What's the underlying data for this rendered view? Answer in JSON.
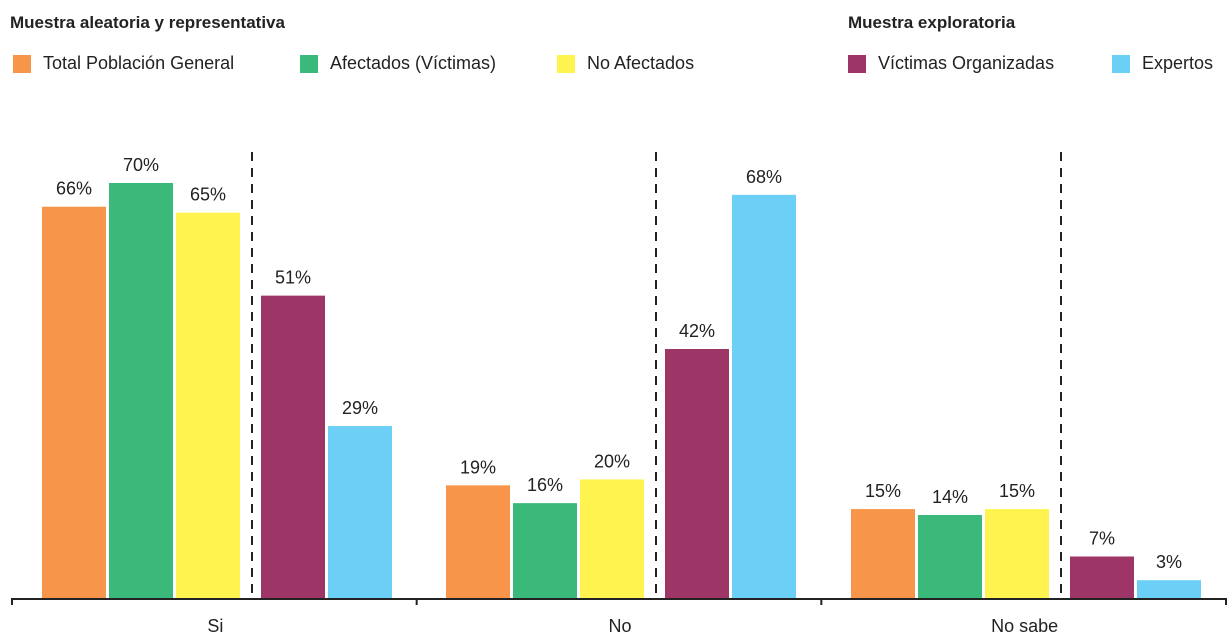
{
  "legend": {
    "group_random": {
      "title": "Muestra aleatoria y representativa",
      "items": [
        {
          "label": "Total Población General",
          "color": "#f7964a"
        },
        {
          "label": "Afectados (Víctimas)",
          "color": "#3bb97a"
        },
        {
          "label": "No Afectados",
          "color": "#fff34f"
        }
      ]
    },
    "group_exploratory": {
      "title": "Muestra exploratoria",
      "items": [
        {
          "label": "Víctimas Organizadas",
          "color": "#9e3567"
        },
        {
          "label": "Expertos",
          "color": "#6bcff6"
        }
      ]
    }
  },
  "chart_data": {
    "type": "bar",
    "title": "",
    "xlabel": "",
    "ylabel": "",
    "ylim": [
      0,
      70
    ],
    "grid": false,
    "legend_position": "top",
    "categories": [
      "Si",
      "No",
      "No sabe"
    ],
    "series": [
      {
        "name": "Total Población General",
        "color": "#f7964a",
        "values": [
          66,
          19,
          15
        ],
        "labels": [
          "66%",
          "19%",
          "15%"
        ]
      },
      {
        "name": "Afectados (Víctimas)",
        "color": "#3bb97a",
        "values": [
          70,
          16,
          14
        ],
        "labels": [
          "70%",
          "16%",
          "14%"
        ]
      },
      {
        "name": "No Afectados",
        "color": "#fff34f",
        "values": [
          65,
          20,
          15
        ],
        "labels": [
          "65%",
          "20%",
          "15%"
        ]
      },
      {
        "name": "Víctimas Organizadas",
        "color": "#9e3567",
        "values": [
          51,
          42,
          7
        ],
        "labels": [
          "51%",
          "42%",
          "7%"
        ]
      },
      {
        "name": "Expertos",
        "color": "#6bcff6",
        "values": [
          29,
          68,
          3
        ],
        "labels": [
          "29%",
          "68%",
          "3%"
        ]
      }
    ]
  }
}
